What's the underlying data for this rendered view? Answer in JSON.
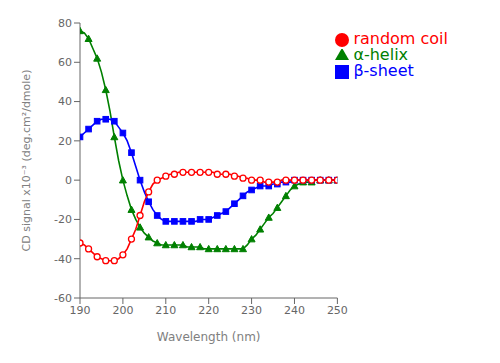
{
  "chart_data": {
    "type": "line",
    "xlabel": "Wavelength (nm)",
    "ylabel": "CD signal x10⁻³ (deg.cm²/dmole)",
    "x": [
      190,
      191,
      192,
      193,
      194,
      195,
      196,
      197,
      198,
      199,
      200,
      201,
      202,
      203,
      204,
      205,
      206,
      207,
      208,
      209,
      210,
      211,
      212,
      213,
      214,
      215,
      216,
      217,
      218,
      219,
      220,
      221,
      222,
      223,
      224,
      225,
      226,
      227,
      228,
      229,
      230,
      231,
      232,
      233,
      234,
      235,
      236,
      237,
      238,
      239,
      240,
      241,
      242,
      243,
      244,
      245,
      246,
      247,
      248,
      249,
      250
    ],
    "series": [
      {
        "name": "α-helix",
        "color": "#008000",
        "marker": "triangle",
        "line_style": "solid",
        "values": [
          76,
          75,
          72,
          67,
          62,
          55,
          46,
          35,
          22,
          10,
          0,
          -8,
          -15,
          -20,
          -24,
          -27,
          -29,
          -31,
          -32,
          -33,
          -33,
          -33,
          -33,
          -33,
          -33,
          -34,
          -34,
          -34,
          -34,
          -35,
          -35,
          -35,
          -35,
          -35,
          -35,
          -35,
          -35,
          -35,
          -35,
          -33,
          -30,
          -28,
          -25,
          -22,
          -19,
          -17,
          -14,
          -11,
          -8,
          -5,
          -3,
          -2,
          -1,
          -1,
          -1,
          0,
          0,
          0,
          0,
          0,
          0
        ]
      },
      {
        "name": "β-sheet",
        "color": "#0000FF",
        "marker": "square",
        "line_style": "solid",
        "values": [
          22,
          24,
          26,
          28,
          30,
          31,
          31,
          31,
          30,
          27,
          24,
          20,
          14,
          7,
          0,
          -6,
          -11,
          -15,
          -18,
          -20,
          -21,
          -21,
          -21,
          -21,
          -21,
          -21,
          -21,
          -21,
          -20,
          -20,
          -20,
          -19,
          -18,
          -17,
          -16,
          -14,
          -12,
          -10,
          -8,
          -6,
          -5,
          -4,
          -3,
          -3,
          -3,
          -2,
          -2,
          -1,
          -1,
          -1,
          0,
          0,
          0,
          0,
          0,
          0,
          0,
          0,
          0,
          0,
          0
        ]
      },
      {
        "name": "random coil",
        "color": "#FF0000",
        "marker": "open_circle",
        "line_style": "solid",
        "values": [
          -32,
          -33,
          -35,
          -37,
          -39,
          -40,
          -41,
          -41,
          -41,
          -40,
          -38,
          -35,
          -30,
          -25,
          -18,
          -11,
          -6,
          -2,
          0,
          1,
          2,
          3,
          3,
          4,
          4,
          4,
          4,
          4,
          4,
          4,
          4,
          4,
          3,
          3,
          3,
          3,
          2,
          2,
          1,
          1,
          0,
          0,
          0,
          -1,
          -1,
          -1,
          -1,
          0,
          0,
          0,
          0,
          0,
          0,
          0,
          0,
          0,
          0,
          0,
          0,
          0,
          0
        ]
      }
    ],
    "xlim": [
      190,
      250
    ],
    "ylim": [
      -60,
      80
    ],
    "xticks": [
      190,
      200,
      210,
      220,
      230,
      240,
      250
    ],
    "yticks": [
      -60,
      -40,
      -20,
      0,
      20,
      40,
      60,
      80
    ],
    "grid": false,
    "legend": "upper right"
  }
}
